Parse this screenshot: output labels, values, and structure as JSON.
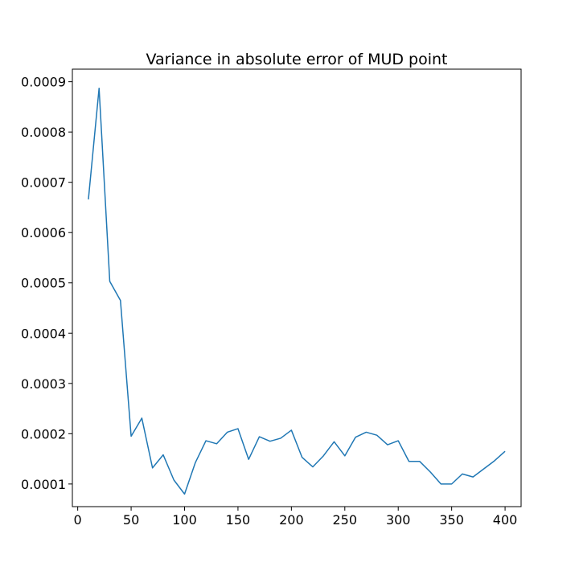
{
  "chart_data": {
    "type": "line",
    "title": "Variance in absolute error of MUD point",
    "xlabel": "",
    "ylabel": "",
    "xlim": [
      -5,
      415
    ],
    "ylim": [
      5.5e-05,
      0.000925
    ],
    "xticks": [
      0,
      50,
      100,
      150,
      200,
      250,
      300,
      350,
      400
    ],
    "xtick_labels": [
      "0",
      "50",
      "100",
      "150",
      "200",
      "250",
      "300",
      "350",
      "400"
    ],
    "yticks": [
      0.0001,
      0.0002,
      0.0003,
      0.0004,
      0.0005,
      0.0006,
      0.0007,
      0.0008,
      0.0009
    ],
    "ytick_labels": [
      "0.0001",
      "0.0002",
      "0.0003",
      "0.0004",
      "0.0005",
      "0.0006",
      "0.0007",
      "0.0008",
      "0.0009"
    ],
    "grid": false,
    "legend": "none",
    "line_color": "#1f77b4",
    "series": [
      {
        "x": [
          10,
          20,
          30,
          40,
          50,
          60,
          70,
          80,
          90,
          100,
          110,
          120,
          130,
          140,
          150,
          160,
          170,
          180,
          190,
          200,
          210,
          220,
          230,
          240,
          250,
          260,
          270,
          280,
          290,
          300,
          310,
          320,
          330,
          340,
          350,
          360,
          370,
          380,
          390,
          400
        ],
        "values": [
          0.000666,
          0.000887,
          0.000503,
          0.000465,
          0.000195,
          0.000231,
          0.000132,
          0.000158,
          0.000108,
          8e-05,
          0.000142,
          0.000186,
          0.00018,
          0.000203,
          0.00021,
          0.000149,
          0.000194,
          0.000185,
          0.000191,
          0.000207,
          0.000153,
          0.000134,
          0.000156,
          0.000184,
          0.000156,
          0.000193,
          0.000203,
          0.000197,
          0.000178,
          0.000186,
          0.000145,
          0.000145,
          0.000124,
          0.0001,
          0.0001,
          0.00012,
          0.000114,
          0.00013,
          0.000146,
          0.000165
        ]
      }
    ]
  }
}
